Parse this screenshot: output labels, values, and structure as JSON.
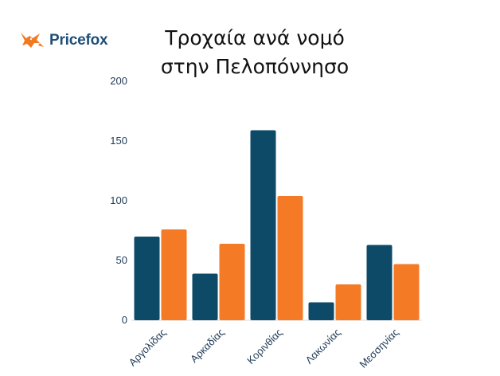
{
  "brand": {
    "name": "Pricefox",
    "logo_icon": "fox-icon",
    "logo_color": "#f07a22"
  },
  "chart_data": {
    "type": "bar",
    "title_lines": [
      "Τροχαία ανά νομό",
      "στην Πελοπόννησο"
    ],
    "categories": [
      "Αργολίδας",
      "Αρκαδίας",
      "Κορινθίας",
      "Λακωνίας",
      "Μεσσηνίας"
    ],
    "series": [
      {
        "values": [
          70,
          39,
          159,
          15,
          63
        ],
        "color": "#0d4a68"
      },
      {
        "values": [
          76,
          64,
          104,
          30,
          47
        ],
        "color": "#f47a26"
      }
    ],
    "yticks": [
      0,
      50,
      100,
      150,
      200
    ],
    "ylim": [
      0,
      200
    ],
    "grid": false,
    "legend": "none"
  }
}
